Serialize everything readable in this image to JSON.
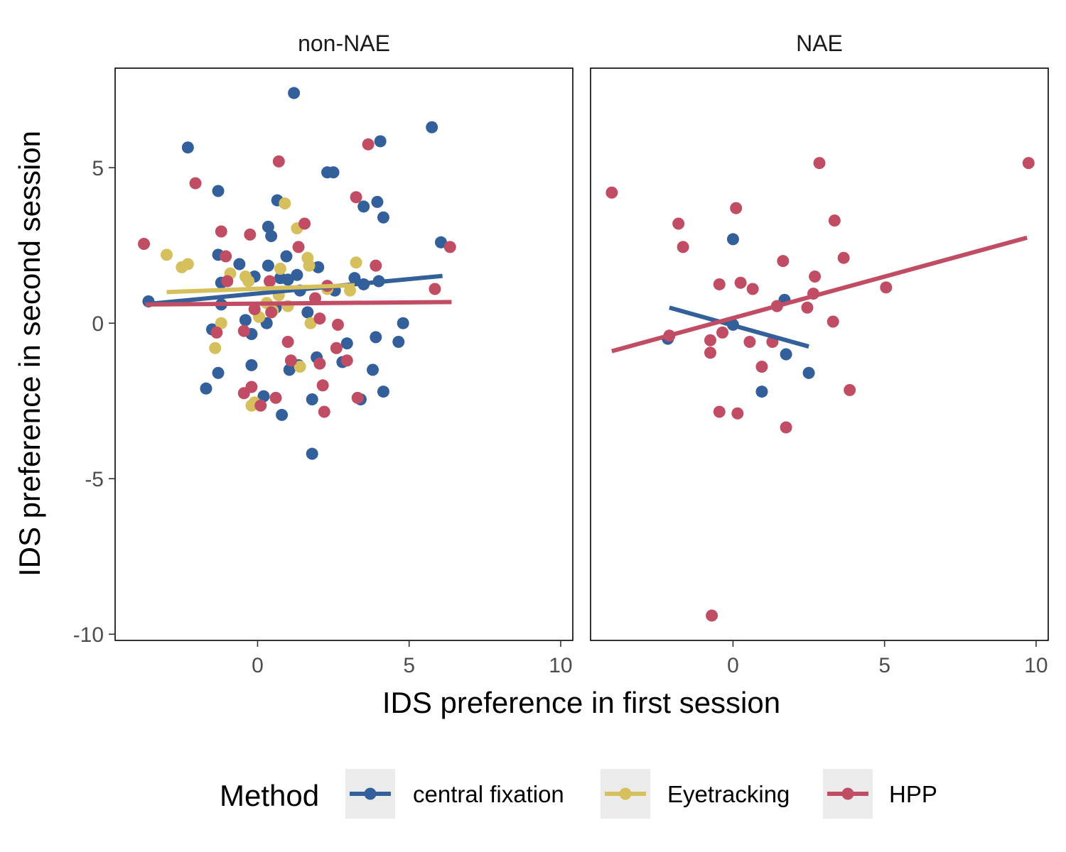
{
  "chart_data": {
    "type": "scatter",
    "xlabel": "IDS preference in first session",
    "ylabel": "IDS preference in second session",
    "x_ticks": [
      0,
      5,
      10
    ],
    "x_tick_labels": [
      "0",
      "5",
      "10"
    ],
    "y_ticks": [
      -10,
      -5,
      0,
      5
    ],
    "y_tick_labels": [
      "-10",
      "-5",
      "0",
      "5"
    ],
    "xlim": [
      -4.7,
      10.4
    ],
    "ylim": [
      -10.2,
      8.2
    ],
    "grid": false,
    "legend": {
      "title": "Method",
      "position": "bottom",
      "entries": [
        "central fixation",
        "Eyetracking",
        "HPP"
      ]
    },
    "colors": {
      "central fixation": "#33609a",
      "Eyetracking": "#d6c05e",
      "HPP": "#c14d64"
    },
    "panels": [
      {
        "title": "non-NAE",
        "series": [
          {
            "name": "central fixation",
            "fit": [
              [
                -3.6,
                0.62
              ],
              [
                6.1,
                1.52
              ]
            ],
            "points": [
              [
                -3.6,
                0.7
              ],
              [
                -2.3,
                5.65
              ],
              [
                -1.3,
                4.25
              ],
              [
                -1.5,
                -0.2
              ],
              [
                -1.3,
                -1.6
              ],
              [
                -1.7,
                -2.1
              ],
              [
                -1.3,
                2.2
              ],
              [
                -1.2,
                1.3
              ],
              [
                -1.2,
                0.6
              ],
              [
                -0.6,
                1.9
              ],
              [
                -0.4,
                0.1
              ],
              [
                -0.2,
                -0.35
              ],
              [
                -0.1,
                1.5
              ],
              [
                -0.2,
                -1.35
              ],
              [
                0.2,
                -2.35
              ],
              [
                0.3,
                0.0
              ],
              [
                0.35,
                1.85
              ],
              [
                0.35,
                3.1
              ],
              [
                0.45,
                2.8
              ],
              [
                0.6,
                0.5
              ],
              [
                0.65,
                3.95
              ],
              [
                0.75,
                1.45
              ],
              [
                0.8,
                -2.95
              ],
              [
                0.95,
                2.15
              ],
              [
                1.0,
                1.4
              ],
              [
                1.05,
                -1.5
              ],
              [
                1.2,
                7.4
              ],
              [
                1.3,
                1.55
              ],
              [
                1.4,
                1.05
              ],
              [
                1.35,
                -1.35
              ],
              [
                1.65,
                0.35
              ],
              [
                1.8,
                -2.45
              ],
              [
                1.8,
                -4.2
              ],
              [
                2.0,
                1.8
              ],
              [
                1.95,
                -1.1
              ],
              [
                2.3,
                4.85
              ],
              [
                2.5,
                4.85
              ],
              [
                2.55,
                1.05
              ],
              [
                2.8,
                -1.25
              ],
              [
                2.95,
                -0.65
              ],
              [
                3.2,
                1.45
              ],
              [
                3.4,
                -2.45
              ],
              [
                3.5,
                3.75
              ],
              [
                3.5,
                1.25
              ],
              [
                3.8,
                -1.5
              ],
              [
                3.9,
                -0.45
              ],
              [
                3.95,
                3.9
              ],
              [
                4.0,
                1.35
              ],
              [
                4.05,
                5.85
              ],
              [
                4.15,
                3.4
              ],
              [
                4.15,
                -2.2
              ],
              [
                4.65,
                -0.6
              ],
              [
                4.8,
                0.0
              ],
              [
                5.75,
                6.3
              ],
              [
                6.05,
                2.6
              ]
            ]
          },
          {
            "name": "Eyetracking",
            "fit": [
              [
                -3.0,
                1.0
              ],
              [
                3.2,
                1.22
              ]
            ],
            "points": [
              [
                -3.0,
                2.2
              ],
              [
                -2.5,
                1.8
              ],
              [
                -2.3,
                1.9
              ],
              [
                -1.4,
                -0.8
              ],
              [
                -1.2,
                0.0
              ],
              [
                -0.9,
                1.6
              ],
              [
                -0.4,
                1.5
              ],
              [
                -0.3,
                1.35
              ],
              [
                -0.2,
                -2.65
              ],
              [
                -0.1,
                -2.55
              ],
              [
                0.05,
                0.2
              ],
              [
                0.3,
                0.65
              ],
              [
                0.5,
                0.4
              ],
              [
                0.7,
                0.9
              ],
              [
                0.75,
                1.75
              ],
              [
                0.9,
                3.85
              ],
              [
                1.0,
                0.55
              ],
              [
                1.3,
                3.05
              ],
              [
                1.4,
                -1.4
              ],
              [
                1.65,
                2.1
              ],
              [
                1.7,
                1.85
              ],
              [
                1.75,
                0.0
              ],
              [
                2.3,
                1.1
              ],
              [
                3.05,
                1.05
              ],
              [
                3.25,
                1.95
              ]
            ]
          },
          {
            "name": "HPP",
            "fit": [
              [
                -3.7,
                0.6
              ],
              [
                6.4,
                0.68
              ]
            ],
            "points": [
              [
                -3.75,
                2.55
              ],
              [
                -2.05,
                4.5
              ],
              [
                -1.35,
                -0.3
              ],
              [
                -1.2,
                2.95
              ],
              [
                -1.05,
                2.15
              ],
              [
                -1.0,
                1.35
              ],
              [
                -0.45,
                -2.25
              ],
              [
                -0.45,
                -0.25
              ],
              [
                -0.25,
                2.85
              ],
              [
                -0.2,
                -2.05
              ],
              [
                -0.1,
                0.45
              ],
              [
                0.1,
                -2.65
              ],
              [
                0.4,
                1.35
              ],
              [
                0.45,
                0.35
              ],
              [
                0.6,
                -2.4
              ],
              [
                0.7,
                5.2
              ],
              [
                1.0,
                -0.6
              ],
              [
                1.1,
                -1.2
              ],
              [
                1.35,
                2.45
              ],
              [
                1.55,
                3.2
              ],
              [
                1.9,
                0.8
              ],
              [
                2.05,
                -1.3
              ],
              [
                2.05,
                0.15
              ],
              [
                2.15,
                -2.0
              ],
              [
                2.2,
                -2.85
              ],
              [
                2.3,
                1.2
              ],
              [
                2.6,
                -0.8
              ],
              [
                2.65,
                -0.05
              ],
              [
                2.95,
                -1.2
              ],
              [
                3.3,
                -2.4
              ],
              [
                3.25,
                4.05
              ],
              [
                3.65,
                5.75
              ],
              [
                3.9,
                1.85
              ],
              [
                5.85,
                1.1
              ],
              [
                6.35,
                2.45
              ]
            ]
          }
        ]
      },
      {
        "title": "NAE",
        "series": [
          {
            "name": "central fixation",
            "fit": [
              [
                -2.1,
                0.5
              ],
              [
                2.5,
                -0.75
              ]
            ],
            "points": [
              [
                -2.15,
                -0.5
              ],
              [
                0.0,
                2.7
              ],
              [
                0.0,
                -0.05
              ],
              [
                0.95,
                -2.2
              ],
              [
                1.7,
                0.75
              ],
              [
                1.75,
                -1.0
              ],
              [
                2.5,
                -1.6
              ]
            ]
          },
          {
            "name": "HPP",
            "fit": [
              [
                -4.0,
                -0.9
              ],
              [
                9.7,
                2.75
              ]
            ],
            "points": [
              [
                -4.0,
                4.2
              ],
              [
                -2.1,
                -0.4
              ],
              [
                -1.8,
                3.2
              ],
              [
                -1.65,
                2.45
              ],
              [
                -0.75,
                -0.55
              ],
              [
                -0.75,
                -0.95
              ],
              [
                -0.45,
                1.25
              ],
              [
                -0.45,
                -2.85
              ],
              [
                -0.35,
                -0.3
              ],
              [
                0.1,
                3.7
              ],
              [
                0.15,
                -2.9
              ],
              [
                0.25,
                1.3
              ],
              [
                0.55,
                -0.6
              ],
              [
                0.65,
                1.1
              ],
              [
                0.95,
                -1.4
              ],
              [
                1.3,
                -0.6
              ],
              [
                1.45,
                0.55
              ],
              [
                1.65,
                2.0
              ],
              [
                1.75,
                -3.35
              ],
              [
                2.45,
                0.5
              ],
              [
                2.65,
                0.95
              ],
              [
                2.7,
                1.5
              ],
              [
                2.85,
                5.15
              ],
              [
                3.3,
                0.05
              ],
              [
                3.35,
                3.3
              ],
              [
                3.65,
                2.1
              ],
              [
                3.85,
                -2.15
              ],
              [
                5.05,
                1.15
              ],
              [
                9.75,
                5.15
              ],
              [
                -0.7,
                -9.4
              ]
            ]
          }
        ]
      }
    ]
  }
}
